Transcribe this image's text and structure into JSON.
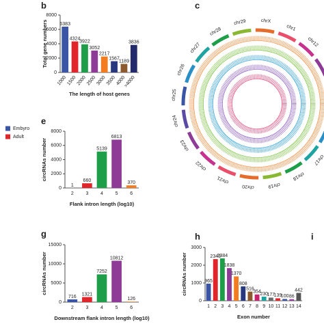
{
  "chart_data": [
    {
      "type": "bar",
      "panel": "b",
      "ylabel": "Total gene numbers",
      "xlabel": "The length of host genes",
      "categories": [
        "1000",
        "1500",
        "2000",
        "2500",
        "3000",
        "3500",
        "4000",
        ">4000"
      ],
      "values": [
        6383,
        4324,
        3922,
        3052,
        2217,
        1567,
        1189,
        3836
      ],
      "colors": [
        "#3b55a5",
        "#e0262b",
        "#1e9e48",
        "#8e3b97",
        "#f47c20",
        "#27387f",
        "#8c5a2e",
        "#232a6b"
      ],
      "ylim": [
        0,
        8000
      ],
      "yticks": [
        0,
        2000,
        4000,
        6000,
        8000
      ]
    },
    {
      "type": "bar",
      "panel": "e",
      "ylabel": "circRNAs number",
      "xlabel": "Flank intron length (log10)",
      "categories": [
        "2",
        "3",
        "4",
        "5",
        "6"
      ],
      "values": [
        1,
        660,
        5139,
        6813,
        370
      ],
      "colors": [
        "#3b55a5",
        "#e0262b",
        "#1e9e48",
        "#8e3b97",
        "#f47c20"
      ],
      "ylim": [
        0,
        8000
      ],
      "yticks": [
        0,
        2000,
        4000,
        6000,
        8000
      ]
    },
    {
      "type": "bar",
      "panel": "g",
      "ylabel": "circRNAs number",
      "xlabel": "Downstream flank intron length (log10)",
      "categories": [
        "2",
        "3",
        "4",
        "5",
        "6"
      ],
      "values": [
        716,
        1321,
        7252,
        10812,
        126
      ],
      "colors": [
        "#3b55a5",
        "#e0262b",
        "#1e9e48",
        "#8e3b97",
        "#f47c20"
      ],
      "ylim": [
        0,
        15000
      ],
      "yticks": [
        0,
        5000,
        10000,
        15000
      ]
    },
    {
      "type": "bar",
      "panel": "h",
      "ylabel": "circRNAs number",
      "xlabel": "Exon number",
      "categories": [
        "1",
        "2",
        "3",
        "4",
        "5",
        "6",
        "7",
        "8",
        "9",
        "10",
        "11",
        "12",
        "13",
        "14"
      ],
      "values": [
        965,
        2343,
        2384,
        1838,
        1370,
        808,
        516,
        354,
        230,
        177,
        139,
        100,
        86,
        442
      ],
      "colors": [
        "#3b55a5",
        "#e0262b",
        "#1e9e48",
        "#8e3b97",
        "#f47c20",
        "#27387f",
        "#8c5a2e",
        "#c8246e",
        "#1fa3a0",
        "#6a6a6a",
        "#e0262b",
        "#3b55a5",
        "#8e3b97",
        "#555555"
      ],
      "ylim": [
        0,
        3000
      ],
      "yticks": [
        0,
        1000,
        2000,
        3000
      ]
    }
  ],
  "circos": {
    "panel": "c",
    "chromosomes": [
      "chrX",
      "chr1",
      "chr12",
      "chr13",
      "chr14",
      "chr15",
      "chr16",
      "chr17",
      "chr18",
      "chr19",
      "chr20",
      "chr21",
      "chr22",
      "chr23",
      "chr24",
      "chr25",
      "chr26",
      "chr27",
      "chr28",
      "chr29"
    ]
  },
  "legend": [
    "Embyro",
    "Adult"
  ],
  "panel_i": "i"
}
